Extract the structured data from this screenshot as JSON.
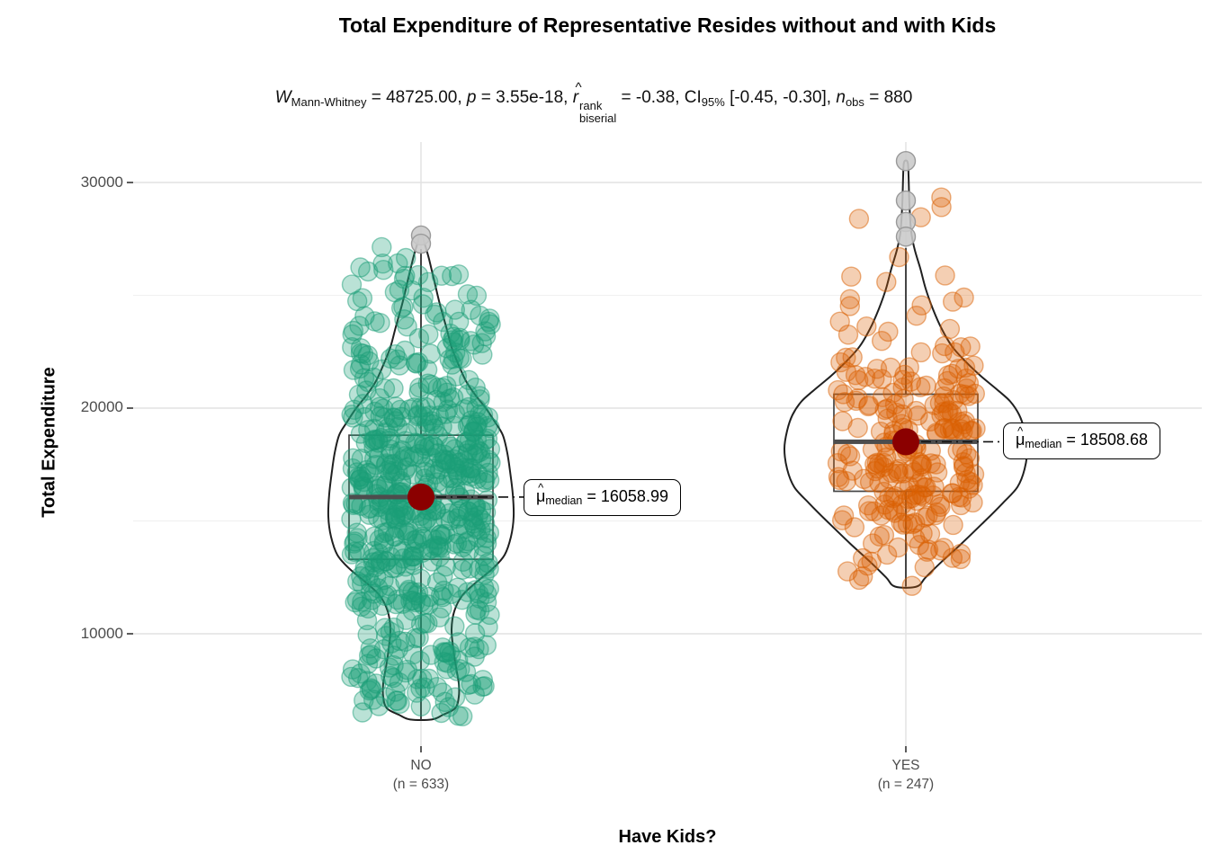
{
  "chart_data": {
    "type": "violin-box-jitter",
    "title": "Total Expenditure of Representative Resides without and with Kids",
    "subtitle": "W Mann-Whitney = 48725.00, p = 3.55e-18, r-hat rank biserial = -0.38, CI 95% [-0.45, -0.30], n obs = 880",
    "xlabel": "Have Kids?",
    "ylabel": "Total Expenditure",
    "ylim": [
      5100,
      31800
    ],
    "yticks": [
      30000,
      20000,
      10000
    ],
    "ytick_labels": [
      "30000",
      "20000",
      "10000"
    ],
    "yticks_minor": [
      25000,
      15000
    ],
    "grid": true,
    "categories": [
      "NO",
      "YES"
    ],
    "statistics": {
      "test": "Mann-Whitney",
      "W": 48725.0,
      "p_value": "3.55e-18",
      "effect_size_name": "rank biserial correlation",
      "effect_size": -0.38,
      "ci_level": "95%",
      "ci": [
        -0.45,
        -0.3
      ],
      "n_obs": 880
    },
    "groups": [
      {
        "label": "NO",
        "n": 633,
        "n_label": "(n = 633)",
        "color": "#1B9E77",
        "median": 16058.99,
        "median_text": "16058.99",
        "q1": 13300,
        "q3": 18800,
        "whisker_low": 6200,
        "whisker_high": 27050,
        "outliers_gray": [
          27650,
          27290
        ],
        "violin": [
          [
            6200,
            12
          ],
          [
            6400,
            24
          ],
          [
            6700,
            38
          ],
          [
            7200,
            42
          ],
          [
            7800,
            42
          ],
          [
            8500,
            39
          ],
          [
            9300,
            36
          ],
          [
            10200,
            34
          ],
          [
            11000,
            37
          ],
          [
            11700,
            46
          ],
          [
            12300,
            62
          ],
          [
            12900,
            80
          ],
          [
            13500,
            93
          ],
          [
            14300,
            100
          ],
          [
            15200,
            103
          ],
          [
            16200,
            102
          ],
          [
            17200,
            99
          ],
          [
            18000,
            96
          ],
          [
            18800,
            91
          ],
          [
            19400,
            82
          ],
          [
            20000,
            72
          ],
          [
            20600,
            60
          ],
          [
            21200,
            50
          ],
          [
            21900,
            42
          ],
          [
            22700,
            34
          ],
          [
            23600,
            28
          ],
          [
            24600,
            21
          ],
          [
            25600,
            15
          ],
          [
            26600,
            9
          ],
          [
            27300,
            4
          ],
          [
            27600,
            2
          ]
        ]
      },
      {
        "label": "YES",
        "n": 247,
        "n_label": "(n = 247)",
        "color": "#D95F02",
        "median": 18508.68,
        "median_text": "18508.68",
        "q1": 16315,
        "q3": 20617,
        "whisker_low": 12090,
        "whisker_high": 27100,
        "outliers_gray": [
          30950,
          29200,
          28250,
          27600
        ],
        "violin": [
          [
            12090,
            12
          ],
          [
            12500,
            22
          ],
          [
            13200,
            40
          ],
          [
            14000,
            62
          ],
          [
            15000,
            88
          ],
          [
            15800,
            108
          ],
          [
            16500,
            124
          ],
          [
            17300,
            132
          ],
          [
            18200,
            135
          ],
          [
            19000,
            132
          ],
          [
            19700,
            126
          ],
          [
            20300,
            116
          ],
          [
            20800,
            102
          ],
          [
            21400,
            84
          ],
          [
            22000,
            68
          ],
          [
            22700,
            52
          ],
          [
            23500,
            40
          ],
          [
            24400,
            30
          ],
          [
            25300,
            22
          ],
          [
            26200,
            16
          ],
          [
            27000,
            10
          ],
          [
            27800,
            6
          ],
          [
            29000,
            4
          ],
          [
            30300,
            3
          ],
          [
            30900,
            2
          ]
        ]
      }
    ],
    "colors": {
      "group_no": "#1B9E77",
      "group_yes": "#D95F02",
      "median_point": "#8B0000",
      "gray_outlier": "#C9C9C9",
      "box_stroke": "#454545",
      "violin_stroke": "#202020",
      "grid_major": "#E2E2E2",
      "grid_minor": "#F0F0F0",
      "tick_text": "#4D4D4D"
    }
  },
  "subtitle_parts": {
    "w": "W",
    "w_sub": "Mann-Whitney",
    "w_eq": " = 48725.00, ",
    "p": "p",
    "p_eq": " = 3.55e-18, ",
    "r": "r",
    "r_hat": "^",
    "r_sup": "rank",
    "r_sub": "biserial",
    "r_eq": " = -0.38, ",
    "ci": "CI",
    "ci_sub": "95%",
    "ci_eq": " [-0.45, -0.30], ",
    "n": "n",
    "n_sub": "obs",
    "n_eq": " = 880"
  },
  "median_prefix": {
    "mu": "μ",
    "hat": "^",
    "sub": "median",
    "eq": " = "
  }
}
